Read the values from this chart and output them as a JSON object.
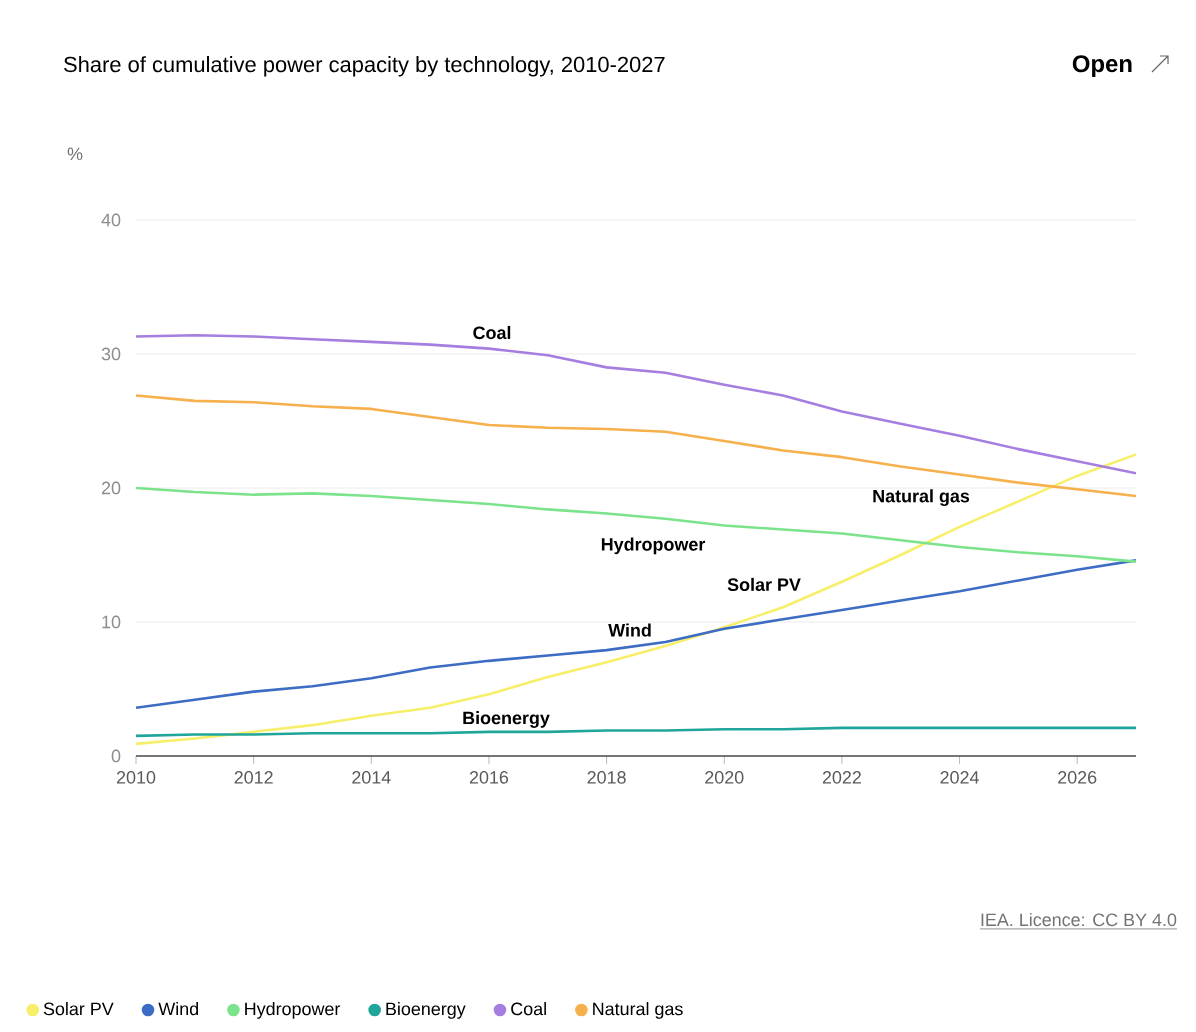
{
  "chart_data": {
    "type": "line",
    "title": "Share of cumulative power capacity by technology, 2010-2027",
    "ylabel": "%",
    "x": [
      2010,
      2011,
      2012,
      2013,
      2014,
      2015,
      2016,
      2017,
      2018,
      2019,
      2020,
      2021,
      2022,
      2023,
      2024,
      2025,
      2026,
      2027
    ],
    "series": [
      {
        "name": "Solar PV",
        "color": "#f7ef6a",
        "values": [
          0.9,
          1.3,
          1.8,
          2.3,
          3.0,
          3.6,
          4.6,
          5.9,
          7.0,
          8.2,
          9.6,
          11.1,
          13.0,
          15.0,
          17.1,
          19.0,
          20.9,
          22.5
        ]
      },
      {
        "name": "Wind",
        "color": "#3d6cc4",
        "values": [
          3.6,
          4.2,
          4.8,
          5.2,
          5.8,
          6.6,
          7.1,
          7.5,
          7.9,
          8.5,
          9.5,
          10.2,
          10.9,
          11.6,
          12.3,
          13.1,
          13.9,
          14.6
        ]
      },
      {
        "name": "Hydropower",
        "color": "#7be38b",
        "values": [
          20.0,
          19.7,
          19.5,
          19.6,
          19.4,
          19.1,
          18.8,
          18.4,
          18.1,
          17.7,
          17.2,
          16.9,
          16.6,
          16.1,
          15.6,
          15.2,
          14.9,
          14.5
        ]
      },
      {
        "name": "Bioenergy",
        "color": "#1fa59a",
        "values": [
          1.5,
          1.6,
          1.6,
          1.7,
          1.7,
          1.7,
          1.8,
          1.8,
          1.9,
          1.9,
          2.0,
          2.0,
          2.1,
          2.1,
          2.1,
          2.1,
          2.1,
          2.1
        ]
      },
      {
        "name": "Coal",
        "color": "#a57ee0",
        "values": [
          31.3,
          31.4,
          31.3,
          31.1,
          30.9,
          30.7,
          30.4,
          29.9,
          29.0,
          28.6,
          27.7,
          26.9,
          25.7,
          24.8,
          23.9,
          22.9,
          22.0,
          21.1
        ]
      },
      {
        "name": "Natural gas",
        "color": "#f6b04c",
        "values": [
          26.9,
          26.5,
          26.4,
          26.1,
          25.9,
          25.3,
          24.7,
          24.5,
          24.4,
          24.2,
          23.5,
          22.8,
          22.3,
          21.6,
          21.0,
          20.4,
          19.9,
          19.4
        ]
      }
    ],
    "xlim": [
      2010,
      2027
    ],
    "ylim": [
      0,
      40
    ],
    "xticks": [
      2010,
      2012,
      2014,
      2016,
      2018,
      2020,
      2022,
      2024,
      2026
    ],
    "yticks": [
      0,
      10,
      20,
      30,
      40
    ],
    "grid": "y",
    "legend": "bottom",
    "marker": "none",
    "line_style": "solid",
    "annotations": [
      "Open",
      "IEA. Licence: CC BY 4.0"
    ]
  }
}
